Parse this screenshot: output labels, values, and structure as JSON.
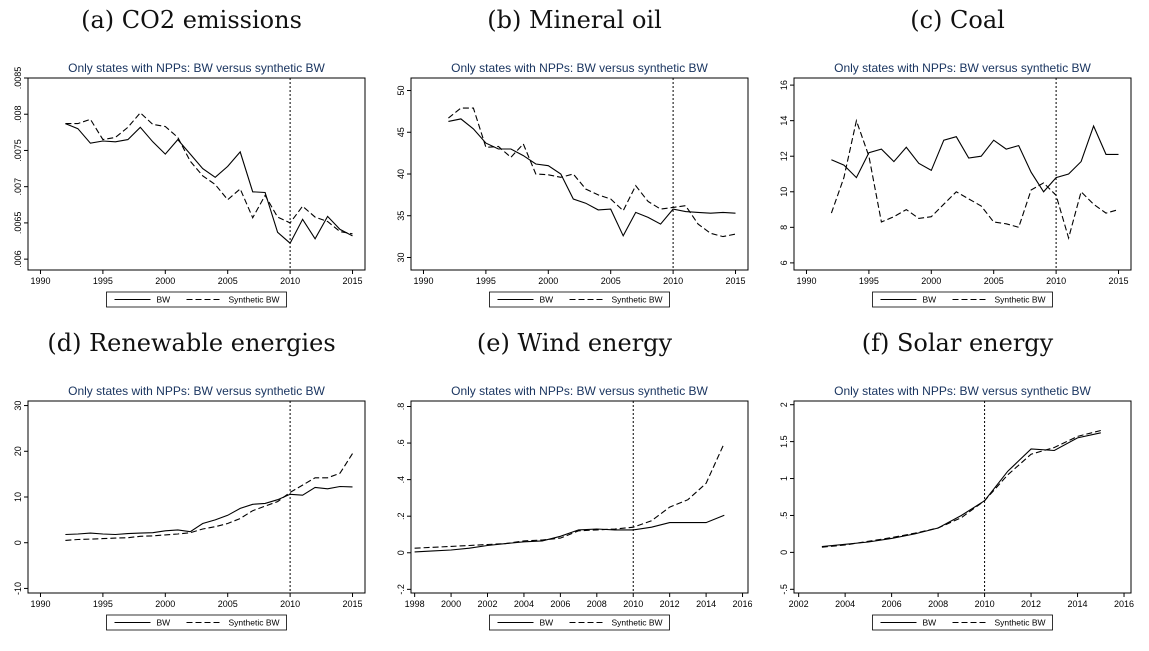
{
  "figure": {
    "panels": [
      {
        "label": "(a) CO2 emissions"
      },
      {
        "label": "(b) Mineral oil"
      },
      {
        "label": "(c) Coal"
      },
      {
        "label": "(d) Renewable energies"
      },
      {
        "label": "(e) Wind energy"
      },
      {
        "label": "(f) Solar energy"
      }
    ]
  },
  "chart_data": [
    {
      "type": "line",
      "panel_label": "(a) CO2 emissions",
      "title": "Only states with NPPs: BW versus synthetic BW",
      "xlim": [
        1989,
        2016
      ],
      "ylim": [
        0.00585,
        0.0085
      ],
      "xticks": [
        1990,
        1995,
        2000,
        2005,
        2010,
        2015
      ],
      "yticks": [
        0.006,
        0.0065,
        0.007,
        0.0075,
        0.008,
        0.0085
      ],
      "ytick_labels": [
        ".006",
        ".0065",
        ".007",
        ".0075",
        ".008",
        ".0085"
      ],
      "treatment_year": 2010,
      "x": [
        1992,
        1993,
        1994,
        1995,
        1996,
        1997,
        1998,
        1999,
        2000,
        2001,
        2002,
        2003,
        2004,
        2005,
        2006,
        2007,
        2008,
        2009,
        2010,
        2011,
        2012,
        2013,
        2014,
        2015
      ],
      "series": [
        {
          "name": "BW",
          "style": "solid",
          "values": [
            0.00787,
            0.0078,
            0.0076,
            0.00763,
            0.00762,
            0.00765,
            0.00782,
            0.00762,
            0.00745,
            0.00765,
            0.00745,
            0.00725,
            0.00713,
            0.00728,
            0.00748,
            0.00693,
            0.00692,
            0.00637,
            0.00622,
            0.00655,
            0.00628,
            0.00659,
            0.00641,
            0.00632
          ]
        },
        {
          "name": "Synthetic BW",
          "style": "dashed",
          "values": [
            0.00787,
            0.00787,
            0.00793,
            0.00765,
            0.00768,
            0.00782,
            0.00802,
            0.00786,
            0.00783,
            0.00768,
            0.00735,
            0.00715,
            0.00703,
            0.00682,
            0.00697,
            0.00657,
            0.00688,
            0.00658,
            0.0065,
            0.00673,
            0.00658,
            0.00652,
            0.00638,
            0.00635
          ]
        }
      ]
    },
    {
      "type": "line",
      "panel_label": "(b) Mineral oil",
      "title": "Only states with NPPs: BW versus synthetic BW",
      "xlim": [
        1989,
        2016
      ],
      "ylim": [
        28.5,
        51.5
      ],
      "xticks": [
        1990,
        1995,
        2000,
        2005,
        2010,
        2015
      ],
      "yticks": [
        30,
        35,
        40,
        45,
        50
      ],
      "ytick_labels": [
        "30",
        "35",
        "40",
        "45",
        "50"
      ],
      "treatment_year": 2010,
      "x": [
        1992,
        1993,
        1994,
        1995,
        1996,
        1997,
        1998,
        1999,
        2000,
        2001,
        2002,
        2003,
        2004,
        2005,
        2006,
        2007,
        2008,
        2009,
        2010,
        2011,
        2012,
        2013,
        2014,
        2015
      ],
      "series": [
        {
          "name": "BW",
          "style": "solid",
          "values": [
            46.3,
            46.6,
            45.4,
            43.7,
            43.0,
            43.0,
            42.2,
            41.2,
            41.0,
            40.0,
            37.0,
            36.5,
            35.7,
            35.8,
            32.6,
            35.4,
            34.8,
            34.0,
            35.8,
            35.5,
            35.4,
            35.3,
            35.4,
            35.3
          ]
        },
        {
          "name": "Synthetic BW",
          "style": "dashed",
          "values": [
            46.7,
            47.9,
            47.9,
            43.2,
            43.3,
            42.0,
            43.6,
            40.0,
            39.9,
            39.6,
            40.0,
            38.2,
            37.5,
            37.0,
            35.6,
            38.6,
            36.7,
            35.8,
            36.0,
            36.2,
            34.0,
            32.9,
            32.5,
            32.8
          ]
        }
      ]
    },
    {
      "type": "line",
      "panel_label": "(c) Coal",
      "title": "Only states with NPPs: BW versus synthetic BW",
      "xlim": [
        1989,
        2016
      ],
      "ylim": [
        5.6,
        16.4
      ],
      "xticks": [
        1990,
        1995,
        2000,
        2005,
        2010,
        2015
      ],
      "yticks": [
        6,
        8,
        10,
        12,
        14,
        16
      ],
      "ytick_labels": [
        "6",
        "8",
        "10",
        "12",
        "14",
        "16"
      ],
      "treatment_year": 2010,
      "x": [
        1992,
        1993,
        1994,
        1995,
        1996,
        1997,
        1998,
        1999,
        2000,
        2001,
        2002,
        2003,
        2004,
        2005,
        2006,
        2007,
        2008,
        2009,
        2010,
        2011,
        2012,
        2013,
        2014,
        2015
      ],
      "series": [
        {
          "name": "BW",
          "style": "solid",
          "values": [
            11.8,
            11.5,
            10.8,
            12.2,
            12.4,
            11.7,
            12.5,
            11.6,
            11.2,
            12.9,
            13.1,
            11.9,
            12.0,
            12.9,
            12.4,
            12.6,
            11.1,
            10.0,
            10.8,
            11.0,
            11.7,
            13.7,
            12.1,
            12.1
          ]
        },
        {
          "name": "Synthetic BW",
          "style": "dashed",
          "values": [
            8.8,
            10.8,
            14.0,
            12.0,
            8.3,
            8.6,
            9.0,
            8.5,
            8.6,
            9.3,
            10.0,
            9.6,
            9.2,
            8.3,
            8.2,
            8.0,
            10.1,
            10.5,
            9.8,
            7.4,
            10.0,
            9.3,
            8.8,
            9.0
          ]
        }
      ]
    },
    {
      "type": "line",
      "panel_label": "(d) Renewable energies",
      "title": "Only states with NPPs: BW versus synthetic BW",
      "xlim": [
        1989,
        2016
      ],
      "ylim": [
        -11,
        31
      ],
      "xticks": [
        1990,
        1995,
        2000,
        2005,
        2010,
        2015
      ],
      "yticks": [
        -10,
        0,
        10,
        20,
        30
      ],
      "ytick_labels": [
        "-10",
        "0",
        "10",
        "20",
        "30"
      ],
      "treatment_year": 2010,
      "x": [
        1992,
        1993,
        1994,
        1995,
        1996,
        1997,
        1998,
        1999,
        2000,
        2001,
        2002,
        2003,
        2004,
        2005,
        2006,
        2007,
        2008,
        2009,
        2010,
        2011,
        2012,
        2013,
        2014,
        2015
      ],
      "series": [
        {
          "name": "BW",
          "style": "solid",
          "values": [
            1.8,
            1.9,
            2.1,
            1.9,
            1.8,
            2.0,
            2.1,
            2.2,
            2.6,
            2.8,
            2.4,
            4.2,
            5.0,
            6.0,
            7.5,
            8.4,
            8.6,
            9.4,
            10.6,
            10.4,
            12.1,
            11.8,
            12.3,
            12.2
          ]
        },
        {
          "name": "Synthetic BW",
          "style": "dashed",
          "values": [
            0.5,
            0.7,
            0.8,
            0.9,
            1.0,
            1.1,
            1.4,
            1.5,
            1.7,
            1.9,
            2.2,
            3.0,
            3.5,
            4.2,
            5.3,
            7.0,
            8.0,
            9.0,
            11.0,
            12.6,
            14.2,
            14.2,
            15.2,
            19.5
          ]
        }
      ]
    },
    {
      "type": "line",
      "panel_label": "(e) Wind energy",
      "title": "Only states with NPPs: BW versus synthetic BW",
      "xlim": [
        1997.8,
        2016.3
      ],
      "ylim": [
        -0.22,
        0.83
      ],
      "xticks": [
        1998,
        2000,
        2002,
        2004,
        2006,
        2008,
        2010,
        2012,
        2014,
        2016
      ],
      "yticks": [
        -0.2,
        0,
        0.2,
        0.4,
        0.6,
        0.8
      ],
      "ytick_labels": [
        "-.2",
        "0",
        ".2",
        ".4",
        ".6",
        ".8"
      ],
      "treatment_year": 2010,
      "x": [
        1998,
        1999,
        2000,
        2001,
        2002,
        2003,
        2004,
        2005,
        2006,
        2007,
        2008,
        2009,
        2010,
        2011,
        2012,
        2013,
        2014,
        2015
      ],
      "series": [
        {
          "name": "BW",
          "style": "solid",
          "values": [
            0.005,
            0.01,
            0.015,
            0.025,
            0.04,
            0.05,
            0.06,
            0.065,
            0.09,
            0.125,
            0.13,
            0.125,
            0.125,
            0.14,
            0.165,
            0.165,
            0.165,
            0.205
          ]
        },
        {
          "name": "Synthetic BW",
          "style": "dashed",
          "values": [
            0.025,
            0.03,
            0.035,
            0.04,
            0.045,
            0.05,
            0.065,
            0.07,
            0.08,
            0.12,
            0.125,
            0.13,
            0.14,
            0.175,
            0.25,
            0.29,
            0.38,
            0.6
          ]
        }
      ]
    },
    {
      "type": "line",
      "panel_label": "(f) Solar energy",
      "title": "Only states with NPPs: BW versus synthetic BW",
      "xlim": [
        2001.8,
        2016.3
      ],
      "ylim": [
        -0.55,
        2.05
      ],
      "xticks": [
        2002,
        2004,
        2006,
        2008,
        2010,
        2012,
        2014,
        2016
      ],
      "yticks": [
        -0.5,
        0,
        0.5,
        1,
        1.5,
        2
      ],
      "ytick_labels": [
        "-.5",
        "0",
        ".5",
        "1",
        "1.5",
        "2"
      ],
      "treatment_year": 2010,
      "x": [
        2003,
        2004,
        2005,
        2006,
        2007,
        2008,
        2009,
        2010,
        2011,
        2012,
        2013,
        2014,
        2015
      ],
      "series": [
        {
          "name": "BW",
          "style": "solid",
          "values": [
            0.08,
            0.11,
            0.14,
            0.19,
            0.25,
            0.33,
            0.5,
            0.7,
            1.1,
            1.4,
            1.38,
            1.55,
            1.62
          ]
        },
        {
          "name": "Synthetic BW",
          "style": "dashed",
          "values": [
            0.07,
            0.1,
            0.15,
            0.2,
            0.26,
            0.33,
            0.47,
            0.7,
            1.05,
            1.33,
            1.42,
            1.57,
            1.65
          ]
        }
      ]
    }
  ]
}
